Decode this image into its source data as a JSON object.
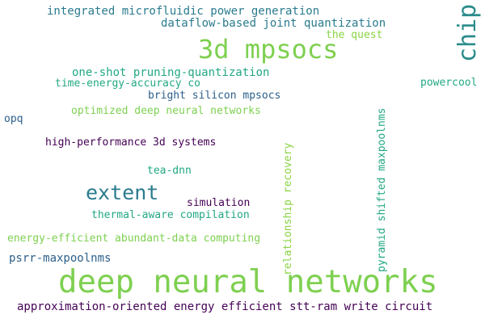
{
  "words": [
    {
      "text": "integrated microfluidic power generation",
      "color": "#2a7b8e"
    },
    {
      "text": "dataflow-based joint quantization",
      "color": "#2a7b8e"
    },
    {
      "text": "3d mpsocs",
      "color": "#7ed050"
    },
    {
      "text": "chip",
      "color": "#2a8b8a"
    },
    {
      "text": "the quest",
      "color": "#8ad443"
    },
    {
      "text": "one-shot pruning-quantization",
      "color": "#22a884"
    },
    {
      "text": "time-energy-accuracy co",
      "color": "#22a884"
    },
    {
      "text": "powercool",
      "color": "#22a884"
    },
    {
      "text": "bright silicon mpsocs",
      "color": "#2c5f8a"
    },
    {
      "text": "optimized deep neural networks",
      "color": "#7ed050"
    },
    {
      "text": "opq",
      "color": "#2c5f8a"
    },
    {
      "text": "relationship recovery",
      "color": "#8ad443"
    },
    {
      "text": "pyramid shifted maxpoolnms",
      "color": "#22a884"
    },
    {
      "text": "high-performance 3d systems",
      "color": "#440154"
    },
    {
      "text": "tea-dnn",
      "color": "#22a884"
    },
    {
      "text": "extent",
      "color": "#2a7b8e"
    },
    {
      "text": "simulation",
      "color": "#440154"
    },
    {
      "text": "thermal-aware compilation",
      "color": "#22a884"
    },
    {
      "text": "energy-efficient abundant-data computing",
      "color": "#7ed050"
    },
    {
      "text": "psrr-maxpoolnms",
      "color": "#2c5f8a"
    },
    {
      "text": "deep neural networks",
      "color": "#7ed050"
    },
    {
      "text": "approximation-oriented energy efficient stt-ram write circuit",
      "color": "#440154"
    }
  ]
}
